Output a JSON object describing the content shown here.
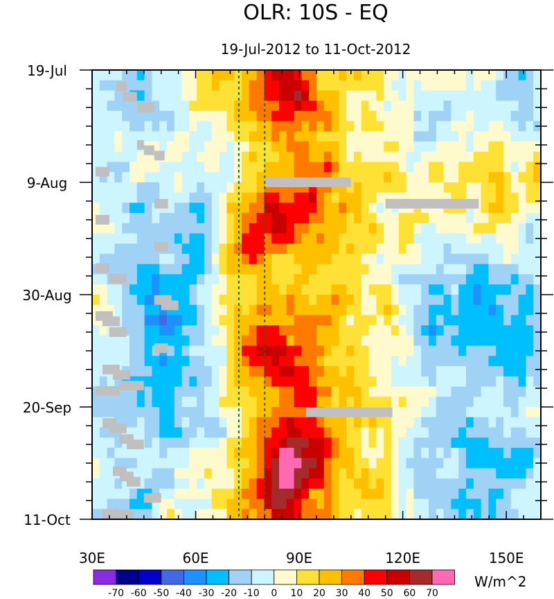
{
  "chart_data": {
    "type": "heatmap",
    "title": "OLR: 10S - EQ",
    "subtitle": "19-Jul-2012 to 11-Oct-2012",
    "x_axis": {
      "range": [
        30,
        160
      ],
      "ticks": [
        30,
        60,
        90,
        120,
        150
      ],
      "tick_labels": [
        "30E",
        "60E",
        "90E",
        "120E",
        "150E"
      ]
    },
    "y_axis": {
      "range_days": [
        0,
        84
      ],
      "ticks": [
        0,
        21,
        42,
        63,
        84
      ],
      "tick_labels": [
        "19-Jul",
        "9-Aug",
        "30-Aug",
        "20-Sep",
        "11-Oct"
      ],
      "inverted": true
    },
    "reference_lines_lon": [
      72.5,
      80
    ],
    "units": "W/m^2",
    "colorbar": {
      "levels": [
        -70,
        -60,
        -50,
        -40,
        -30,
        -20,
        -10,
        0,
        10,
        20,
        30,
        40,
        50,
        60,
        70
      ],
      "labels": [
        "-70",
        "-60",
        "-50",
        "-40",
        "-30",
        "-20",
        "-10",
        "0",
        "10",
        "20",
        "30",
        "40",
        "50",
        "60",
        "70"
      ],
      "colors": [
        "#8a2be2",
        "#00008b",
        "#0000cd",
        "#4169e1",
        "#1e90ff",
        "#00bfff",
        "#a0d2f5",
        "#ccf5ff",
        "#fffacd",
        "#ffe135",
        "#ffc000",
        "#ff7a00",
        "#ff0000",
        "#c80000",
        "#a52a2a",
        "#ff69b4"
      ]
    },
    "missing_color": "#c0c0c0",
    "missing_segments": [
      {
        "lon_start": 37,
        "lon_end": 40,
        "day": 3
      },
      {
        "lon_start": 39,
        "lon_end": 43,
        "day": 5
      },
      {
        "lon_start": 43,
        "lon_end": 48,
        "day": 7
      },
      {
        "lon_start": 43,
        "lon_end": 45,
        "day": 14
      },
      {
        "lon_start": 45,
        "lon_end": 48,
        "day": 15
      },
      {
        "lon_start": 48,
        "lon_end": 51,
        "day": 16
      },
      {
        "lon_start": 31,
        "lon_end": 35,
        "day": 19
      },
      {
        "lon_start": 80,
        "lon_end": 105,
        "day": 21
      },
      {
        "lon_start": 48,
        "lon_end": 52,
        "day": 25
      },
      {
        "lon_start": 115,
        "lon_end": 142,
        "day": 25
      },
      {
        "lon_start": 31,
        "lon_end": 35,
        "day": 28
      },
      {
        "lon_start": 48,
        "lon_end": 52,
        "day": 33
      },
      {
        "lon_start": 31,
        "lon_end": 35,
        "day": 37
      },
      {
        "lon_start": 35,
        "lon_end": 40,
        "day": 39
      },
      {
        "lon_start": 48,
        "lon_end": 53,
        "day": 43
      },
      {
        "lon_start": 50,
        "lon_end": 55,
        "day": 44
      },
      {
        "lon_start": 31,
        "lon_end": 36,
        "day": 46
      },
      {
        "lon_start": 33,
        "lon_end": 38,
        "day": 47
      },
      {
        "lon_start": 35,
        "lon_end": 40,
        "day": 49
      },
      {
        "lon_start": 48,
        "lon_end": 52,
        "day": 52
      },
      {
        "lon_start": 33,
        "lon_end": 38,
        "day": 56
      },
      {
        "lon_start": 36,
        "lon_end": 41,
        "day": 57
      },
      {
        "lon_start": 38,
        "lon_end": 45,
        "day": 59
      },
      {
        "lon_start": 31,
        "lon_end": 38,
        "day": 60
      },
      {
        "lon_start": 92,
        "lon_end": 117,
        "day": 64
      },
      {
        "lon_start": 33,
        "lon_end": 37,
        "day": 66
      },
      {
        "lon_start": 35,
        "lon_end": 40,
        "day": 67
      },
      {
        "lon_start": 38,
        "lon_end": 42,
        "day": 69
      },
      {
        "lon_start": 40,
        "lon_end": 45,
        "day": 70
      },
      {
        "lon_start": 36,
        "lon_end": 40,
        "day": 75
      },
      {
        "lon_start": 38,
        "lon_end": 42,
        "day": 76
      },
      {
        "lon_start": 40,
        "lon_end": 44,
        "day": 77
      },
      {
        "lon_start": 45,
        "lon_end": 50,
        "day": 80
      },
      {
        "lon_start": 33,
        "lon_end": 38,
        "day": 83
      },
      {
        "lon_start": 38,
        "lon_end": 42,
        "day": 84
      }
    ]
  }
}
